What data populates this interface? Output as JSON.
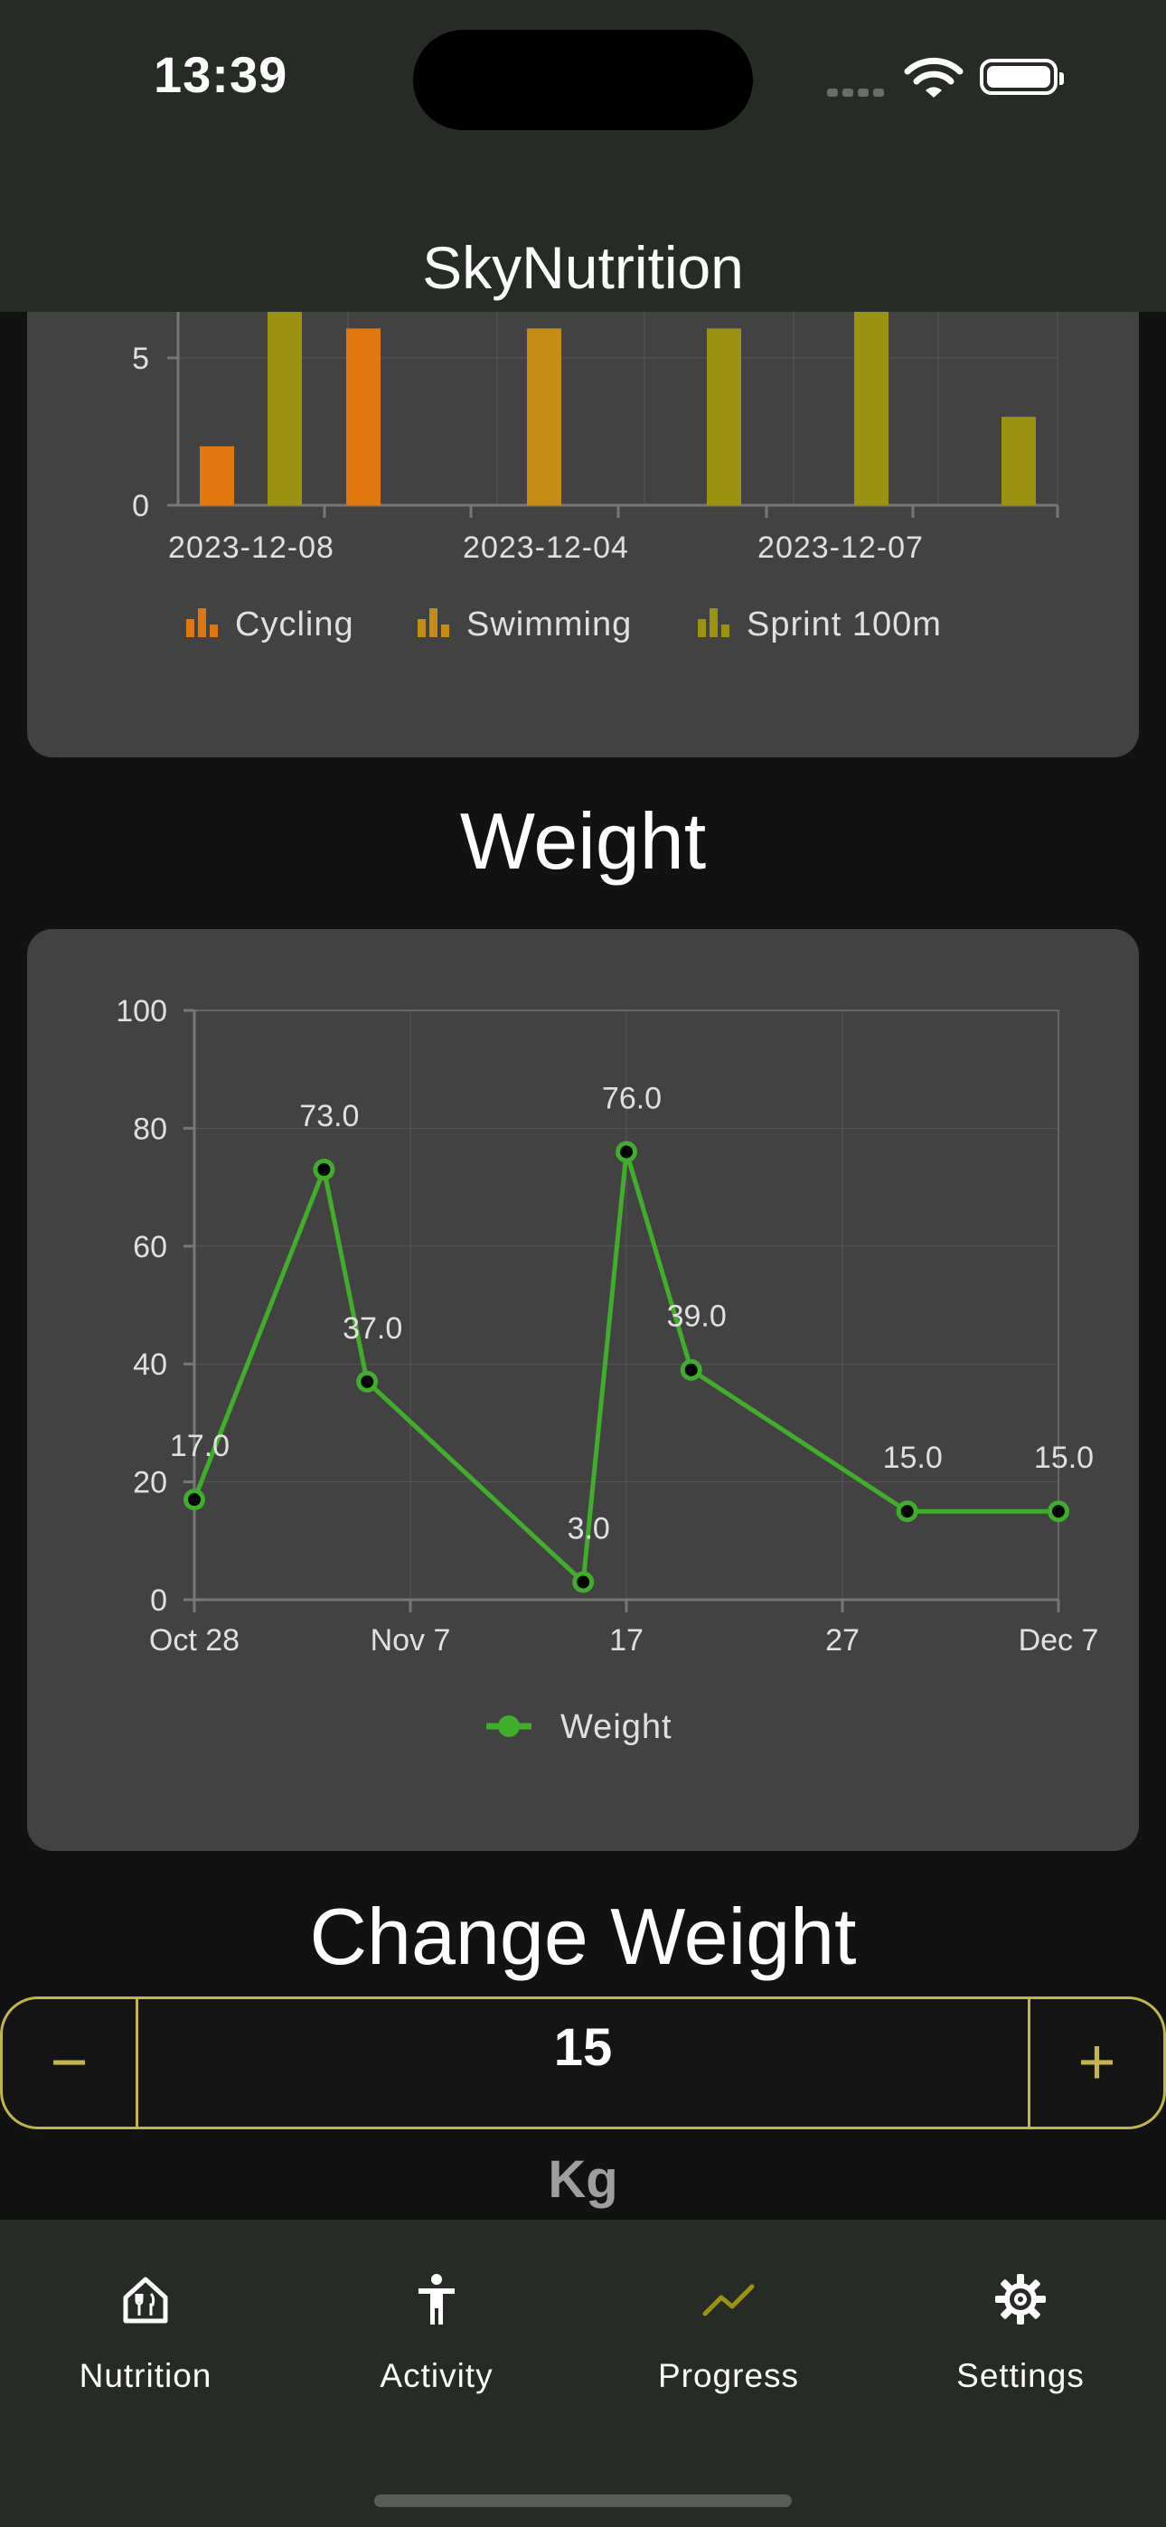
{
  "status_bar": {
    "time": "13:39"
  },
  "app_bar": {
    "title": "SkyNutrition"
  },
  "activity_chart": {
    "chart_data": {
      "type": "bar",
      "x_tick_labels": [
        "2023-12-08",
        "2023-12-04",
        "2023-12-07"
      ],
      "y_ticks": [
        "0",
        "5"
      ],
      "bars": [
        {
          "series": "Cycling",
          "value": 2
        },
        {
          "series": "Sprint 100m",
          "value": 7
        },
        {
          "series": "Cycling",
          "value": 6
        },
        {
          "series": "Swimming",
          "value": 6
        },
        {
          "series": "Sprint 100m",
          "value": 6
        },
        {
          "series": "Sprint 100m",
          "value": 7
        },
        {
          "series": "Sprint 100m",
          "value": 3
        }
      ],
      "series": [
        {
          "name": "Cycling",
          "color": "#e0780f"
        },
        {
          "name": "Swimming",
          "color": "#c48c14"
        },
        {
          "name": "Sprint 100m",
          "color": "#9c9212"
        }
      ],
      "legend_position": "bottom"
    }
  },
  "weight_section": {
    "title": "Weight"
  },
  "weight_chart": {
    "chart_data": {
      "type": "line",
      "x_tick_labels": [
        "Oct 28",
        "Nov 7",
        "17",
        "27",
        "Dec 7"
      ],
      "y_ticks": [
        "0",
        "20",
        "40",
        "60",
        "80",
        "100"
      ],
      "ylim": [
        0,
        100
      ],
      "xlim": [
        "2023-10-28",
        "2023-12-07"
      ],
      "series": [
        {
          "name": "Weight",
          "color": "#3fae29",
          "points": [
            {
              "x": "2023-10-28",
              "y": 17.0,
              "label": "17.0"
            },
            {
              "x": "2023-11-03",
              "y": 73.0,
              "label": "73.0"
            },
            {
              "x": "2023-11-05",
              "y": 37.0,
              "label": "37.0"
            },
            {
              "x": "2023-11-15",
              "y": 3.0,
              "label": "3.0"
            },
            {
              "x": "2023-11-17",
              "y": 76.0,
              "label": "76.0"
            },
            {
              "x": "2023-11-20",
              "y": 39.0,
              "label": "39.0"
            },
            {
              "x": "2023-11-30",
              "y": 15.0,
              "label": "15.0"
            },
            {
              "x": "2023-12-07",
              "y": 15.0,
              "label": "15.0"
            }
          ]
        }
      ],
      "grid": true,
      "legend_position": "bottom"
    }
  },
  "change_weight": {
    "title": "Change Weight",
    "value": "15",
    "minus_label": "−",
    "plus_label": "+",
    "unit": "Kg"
  },
  "bottom_nav": {
    "items": [
      {
        "label": "Nutrition",
        "icon": "nutrition-icon",
        "active": false
      },
      {
        "label": "Activity",
        "icon": "activity-icon",
        "active": false
      },
      {
        "label": "Progress",
        "icon": "progress-icon",
        "active": true
      },
      {
        "label": "Settings",
        "icon": "settings-icon",
        "active": false
      }
    ]
  },
  "colors": {
    "accent": "#c4b548",
    "line": "#3fae29",
    "surface": "#424242",
    "bar_background": "#272b25"
  }
}
